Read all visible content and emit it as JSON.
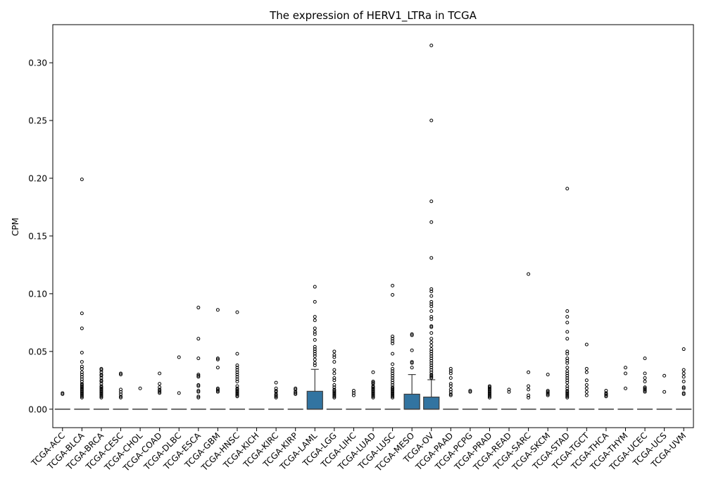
{
  "chart_data": {
    "type": "box",
    "title": "The expression of HERV1_LTRa in TCGA",
    "xlabel": "",
    "ylabel": "CPM",
    "ylim": [
      -0.016,
      0.333
    ],
    "yticks": [
      0.0,
      0.05,
      0.1,
      0.15,
      0.2,
      0.25,
      0.3
    ],
    "ytick_labels": [
      "0.00",
      "0.05",
      "0.10",
      "0.15",
      "0.20",
      "0.25",
      "0.30"
    ],
    "grid": false,
    "legend": "none",
    "box_color": "#3274a1",
    "median_color": "#3d3d3d",
    "categories": [
      "TCGA-ACC",
      "TCGA-BLCA",
      "TCGA-BRCA",
      "TCGA-CESC",
      "TCGA-CHOL",
      "TCGA-COAD",
      "TCGA-DLBC",
      "TCGA-ESCA",
      "TCGA-GBM",
      "TCGA-HNSC",
      "TCGA-KICH",
      "TCGA-KIRC",
      "TCGA-KIRP",
      "TCGA-LAML",
      "TCGA-LGG",
      "TCGA-LIHC",
      "TCGA-LUAD",
      "TCGA-LUSC",
      "TCGA-MESO",
      "TCGA-OV",
      "TCGA-PAAD",
      "TCGA-PCPG",
      "TCGA-PRAD",
      "TCGA-READ",
      "TCGA-SARC",
      "TCGA-SKCM",
      "TCGA-STAD",
      "TCGA-TGCT",
      "TCGA-THCA",
      "TCGA-THYM",
      "TCGA-UCEC",
      "TCGA-UCS",
      "TCGA-UVM"
    ],
    "boxes": [
      {
        "q1": 0,
        "median": 0,
        "q3": 0,
        "whislo": 0,
        "whishi": 0,
        "fliers": [
          0.013,
          0.014
        ]
      },
      {
        "q1": 0,
        "median": 0,
        "q3": 0,
        "whislo": 0,
        "whishi": 0,
        "fliers": [
          0.199,
          0.083,
          0.07,
          0.049,
          0.041,
          0.037,
          0.035,
          0.032,
          0.03,
          0.028,
          0.026,
          0.024,
          0.022,
          0.021,
          0.02,
          0.019,
          0.018,
          0.017,
          0.016,
          0.015,
          0.014,
          0.013,
          0.012,
          0.011,
          0.01
        ]
      },
      {
        "q1": 0,
        "median": 0,
        "q3": 0,
        "whislo": 0,
        "whishi": 0,
        "fliers": [
          0.035,
          0.034,
          0.032,
          0.03,
          0.029,
          0.027,
          0.025,
          0.024,
          0.022,
          0.02,
          0.019,
          0.018,
          0.017,
          0.016,
          0.015,
          0.014,
          0.013,
          0.012,
          0.011,
          0.01
        ]
      },
      {
        "q1": 0,
        "median": 0,
        "q3": 0,
        "whislo": 0,
        "whishi": 0,
        "fliers": [
          0.031,
          0.03,
          0.017,
          0.015,
          0.013,
          0.011,
          0.01
        ]
      },
      {
        "q1": 0,
        "median": 0,
        "q3": 0,
        "whislo": 0,
        "whishi": 0,
        "fliers": [
          0.018
        ]
      },
      {
        "q1": 0,
        "median": 0,
        "q3": 0,
        "whislo": 0,
        "whishi": 0,
        "fliers": [
          0.031,
          0.022,
          0.019,
          0.017,
          0.016,
          0.015,
          0.014
        ]
      },
      {
        "q1": 0,
        "median": 0,
        "q3": 0,
        "whislo": 0,
        "whishi": 0,
        "fliers": [
          0.045,
          0.014
        ]
      },
      {
        "q1": 0,
        "median": 0,
        "q3": 0,
        "whislo": 0,
        "whishi": 0,
        "fliers": [
          0.088,
          0.061,
          0.044,
          0.03,
          0.029,
          0.028,
          0.021,
          0.02,
          0.016,
          0.015,
          0.011,
          0.01
        ]
      },
      {
        "q1": 0,
        "median": 0,
        "q3": 0,
        "whislo": 0,
        "whishi": 0,
        "fliers": [
          0.086,
          0.044,
          0.043,
          0.036,
          0.018,
          0.017,
          0.016,
          0.015
        ]
      },
      {
        "q1": 0,
        "median": 0,
        "q3": 0,
        "whislo": 0,
        "whishi": 0,
        "fliers": [
          0.084,
          0.048,
          0.038,
          0.036,
          0.034,
          0.032,
          0.03,
          0.028,
          0.026,
          0.024,
          0.02,
          0.018,
          0.017,
          0.016,
          0.015,
          0.014,
          0.013,
          0.012,
          0.011
        ]
      },
      {
        "q1": 0,
        "median": 0,
        "q3": 0,
        "whislo": 0,
        "whishi": 0,
        "fliers": []
      },
      {
        "q1": 0,
        "median": 0,
        "q3": 0,
        "whislo": 0,
        "whishi": 0,
        "fliers": [
          0.023,
          0.018,
          0.016,
          0.015,
          0.013,
          0.012,
          0.011,
          0.01
        ]
      },
      {
        "q1": 0,
        "median": 0,
        "q3": 0,
        "whislo": 0,
        "whishi": 0,
        "fliers": [
          0.018,
          0.017,
          0.015,
          0.014,
          0.013
        ]
      },
      {
        "q1": 0,
        "median": 0,
        "q3": 0.0155,
        "whislo": 0,
        "whishi": 0.0345,
        "fliers": [
          0.106,
          0.093,
          0.08,
          0.077,
          0.07,
          0.067,
          0.065,
          0.06,
          0.054,
          0.052,
          0.05,
          0.048,
          0.046,
          0.043,
          0.04,
          0.038
        ]
      },
      {
        "q1": 0,
        "median": 0,
        "q3": 0,
        "whislo": 0,
        "whishi": 0,
        "fliers": [
          0.05,
          0.047,
          0.045,
          0.041,
          0.034,
          0.031,
          0.027,
          0.025,
          0.021,
          0.019,
          0.017,
          0.016,
          0.015,
          0.014,
          0.013,
          0.012,
          0.011,
          0.01
        ]
      },
      {
        "q1": 0,
        "median": 0,
        "q3": 0,
        "whislo": 0,
        "whishi": 0,
        "fliers": [
          0.016,
          0.014,
          0.012
        ]
      },
      {
        "q1": 0,
        "median": 0,
        "q3": 0,
        "whislo": 0,
        "whishi": 0,
        "fliers": [
          0.032,
          0.024,
          0.023,
          0.022,
          0.02,
          0.019,
          0.018,
          0.017,
          0.016,
          0.015,
          0.014,
          0.013,
          0.012,
          0.011,
          0.01
        ]
      },
      {
        "q1": 0,
        "median": 0,
        "q3": 0,
        "whislo": 0,
        "whishi": 0,
        "fliers": [
          0.107,
          0.099,
          0.063,
          0.061,
          0.059,
          0.057,
          0.048,
          0.039,
          0.035,
          0.033,
          0.031,
          0.029,
          0.027,
          0.025,
          0.023,
          0.021,
          0.019,
          0.018,
          0.017,
          0.016,
          0.015,
          0.014,
          0.013,
          0.012,
          0.011,
          0.01
        ]
      },
      {
        "q1": 0,
        "median": 0,
        "q3": 0.013,
        "whislo": 0,
        "whishi": 0.03,
        "fliers": [
          0.065,
          0.064,
          0.051,
          0.041,
          0.04,
          0.036
        ]
      },
      {
        "q1": 0,
        "median": 0,
        "q3": 0.0105,
        "whislo": 0,
        "whishi": 0.0255,
        "fliers": [
          0.315,
          0.25,
          0.18,
          0.162,
          0.131,
          0.104,
          0.102,
          0.098,
          0.093,
          0.091,
          0.089,
          0.085,
          0.08,
          0.078,
          0.072,
          0.071,
          0.066,
          0.061,
          0.058,
          0.055,
          0.052,
          0.05,
          0.048,
          0.046,
          0.044,
          0.042,
          0.04,
          0.038,
          0.036,
          0.034,
          0.032,
          0.03,
          0.029,
          0.028,
          0.027
        ]
      },
      {
        "q1": 0,
        "median": 0,
        "q3": 0,
        "whislo": 0,
        "whishi": 0,
        "fliers": [
          0.035,
          0.033,
          0.031,
          0.027,
          0.022,
          0.02,
          0.017,
          0.015,
          0.013,
          0.012
        ]
      },
      {
        "q1": 0,
        "median": 0,
        "q3": 0,
        "whislo": 0,
        "whishi": 0,
        "fliers": [
          0.016,
          0.015
        ]
      },
      {
        "q1": 0,
        "median": 0,
        "q3": 0,
        "whislo": 0,
        "whishi": 0,
        "fliers": [
          0.02,
          0.019,
          0.018,
          0.017,
          0.016,
          0.015,
          0.014,
          0.013,
          0.012,
          0.011,
          0.01
        ]
      },
      {
        "q1": 0,
        "median": 0,
        "q3": 0,
        "whislo": 0,
        "whishi": 0,
        "fliers": [
          0.017,
          0.015
        ]
      },
      {
        "q1": 0,
        "median": 0,
        "q3": 0,
        "whislo": 0,
        "whishi": 0,
        "fliers": [
          0.117,
          0.032,
          0.02,
          0.017,
          0.012,
          0.01
        ]
      },
      {
        "q1": 0,
        "median": 0,
        "q3": 0,
        "whislo": 0,
        "whishi": 0,
        "fliers": [
          0.03,
          0.016,
          0.015,
          0.014,
          0.013,
          0.012
        ]
      },
      {
        "q1": 0,
        "median": 0,
        "q3": 0,
        "whislo": 0,
        "whishi": 0,
        "fliers": [
          0.191,
          0.085,
          0.08,
          0.075,
          0.067,
          0.061,
          0.05,
          0.048,
          0.044,
          0.042,
          0.04,
          0.036,
          0.033,
          0.031,
          0.029,
          0.027,
          0.025,
          0.023,
          0.02,
          0.018,
          0.016,
          0.015,
          0.014,
          0.013,
          0.012,
          0.011,
          0.01
        ]
      },
      {
        "q1": 0,
        "median": 0,
        "q3": 0,
        "whislo": 0,
        "whishi": 0,
        "fliers": [
          0.056,
          0.035,
          0.032,
          0.025,
          0.021,
          0.018,
          0.015,
          0.012
        ]
      },
      {
        "q1": 0,
        "median": 0,
        "q3": 0,
        "whislo": 0,
        "whishi": 0,
        "fliers": [
          0.016,
          0.014,
          0.013,
          0.012,
          0.011
        ]
      },
      {
        "q1": 0,
        "median": 0,
        "q3": 0,
        "whislo": 0,
        "whishi": 0,
        "fliers": [
          0.036,
          0.031,
          0.018
        ]
      },
      {
        "q1": 0,
        "median": 0,
        "q3": 0,
        "whislo": 0,
        "whishi": 0,
        "fliers": [
          0.044,
          0.031,
          0.027,
          0.024,
          0.019,
          0.018,
          0.017,
          0.016,
          0.015
        ]
      },
      {
        "q1": 0,
        "median": 0,
        "q3": 0,
        "whislo": 0,
        "whishi": 0,
        "fliers": [
          0.029,
          0.015
        ]
      },
      {
        "q1": 0,
        "median": 0,
        "q3": 0,
        "whislo": 0,
        "whishi": 0,
        "fliers": [
          0.052,
          0.034,
          0.031,
          0.028,
          0.024,
          0.019,
          0.018,
          0.014,
          0.013
        ]
      }
    ]
  }
}
